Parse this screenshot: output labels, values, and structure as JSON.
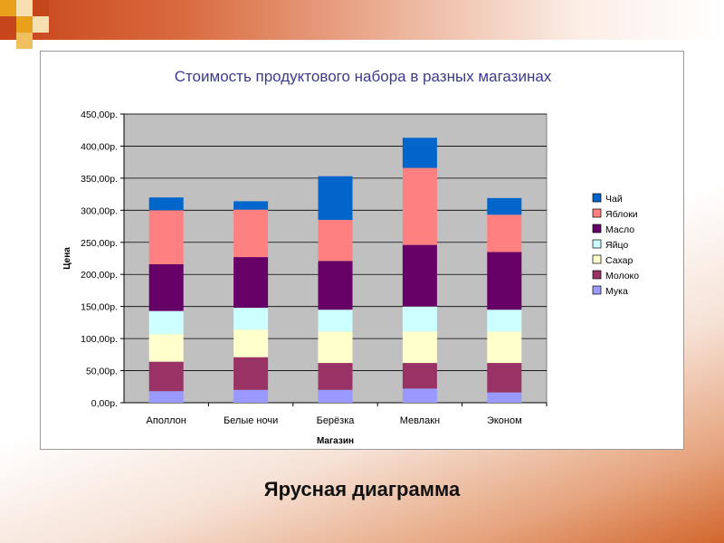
{
  "slide": {
    "caption": "Ярусная диаграмма"
  },
  "colors": {
    "title": "#3b3b8c",
    "plot_bg": "#c0c0c0"
  },
  "chart_data": {
    "type": "bar",
    "stacked": true,
    "title": "Стоимость продуктового набора в разных магазинах",
    "xlabel": "Магазин",
    "ylabel": "Цена",
    "ylim": [
      0,
      450
    ],
    "yticks": [
      0,
      50,
      100,
      150,
      200,
      250,
      300,
      350,
      400,
      450
    ],
    "ytick_labels": [
      "0,00р.",
      "50,00р.",
      "100,00р.",
      "150,00р.",
      "200,00р.",
      "250,00р.",
      "300,00р.",
      "350,00р.",
      "400,00р.",
      "450,00р."
    ],
    "grid": true,
    "legend_position": "right",
    "categories": [
      "Аполлон",
      "Белые ночи",
      "Берёзка",
      "Мевлакн",
      "Эконом"
    ],
    "series": [
      {
        "name": "Мука",
        "color": "#9999ff",
        "values": [
          18,
          20,
          20,
          22,
          16
        ]
      },
      {
        "name": "Молоко",
        "color": "#993366",
        "values": [
          46,
          51,
          42,
          40,
          46
        ]
      },
      {
        "name": "Сахар",
        "color": "#ffffcc",
        "values": [
          43,
          43,
          49,
          49,
          49
        ]
      },
      {
        "name": "Яйцо",
        "color": "#ccffff",
        "values": [
          36,
          34,
          34,
          39,
          34
        ]
      },
      {
        "name": "Масло",
        "color": "#660066",
        "values": [
          73,
          79,
          76,
          96,
          90
        ]
      },
      {
        "name": "Яблоки",
        "color": "#ff8080",
        "values": [
          84,
          74,
          64,
          120,
          58
        ]
      },
      {
        "name": "Чай",
        "color": "#0066cc",
        "values": [
          20,
          13,
          68,
          47,
          26
        ]
      }
    ]
  }
}
